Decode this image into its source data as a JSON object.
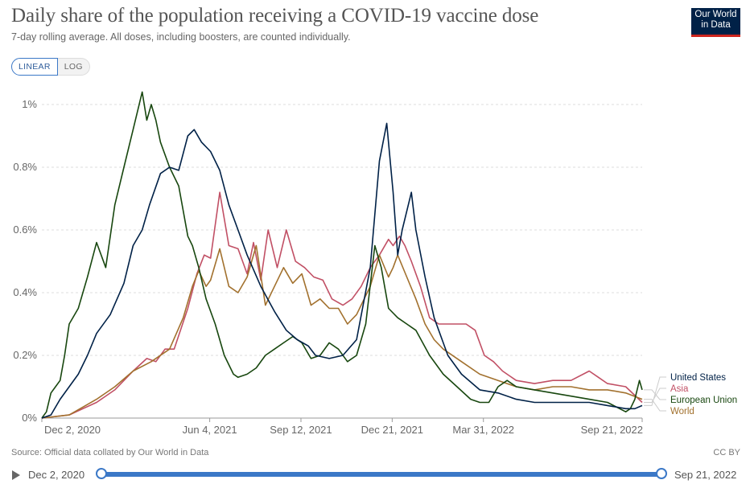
{
  "header": {
    "title": "Daily share of the population receiving a COVID-19 vaccine dose",
    "subtitle": "7-day rolling average. All doses, including boosters, are counted individually.",
    "logo_line1": "Our World",
    "logo_line2": "in Data"
  },
  "controls": {
    "linear_label": "LINEAR",
    "log_label": "LOG",
    "active_scale": "linear"
  },
  "footer": {
    "source": "Source: Official data collated by Our World in Data",
    "license": "CC BY"
  },
  "timeline": {
    "start_label": "Dec 2, 2020",
    "end_label": "Sep 21, 2022",
    "start_value": "2020-12-02",
    "end_value": "2022-09-21"
  },
  "colors": {
    "United States": "#002147",
    "Asia": "#c15065",
    "European Union": "#18470f",
    "World": "#a2712e",
    "logo_bg": "#002147",
    "logo_accent": "#ce261e",
    "accent": "#3b78c7"
  },
  "chart_data": {
    "type": "line",
    "title": "Daily share of the population receiving a COVID-19 vaccine dose",
    "xlabel": "",
    "ylabel": "",
    "x_unit": "days since Dec 2, 2020",
    "xlim": [
      0,
      658
    ],
    "ylim": [
      0,
      1.0
    ],
    "yticks": [
      0,
      0.2,
      0.4,
      0.6,
      0.8,
      1.0
    ],
    "ytick_labels": [
      "0%",
      "0.2%",
      "0.4%",
      "0.6%",
      "0.8%",
      "1%"
    ],
    "x_ticks": [
      {
        "x": 0,
        "label": "Dec 2, 2020"
      },
      {
        "x": 184,
        "label": "Jun 4, 2021"
      },
      {
        "x": 284,
        "label": "Sep 12, 2021"
      },
      {
        "x": 384,
        "label": "Dec 21, 2021"
      },
      {
        "x": 484,
        "label": "Mar 31, 2022"
      },
      {
        "x": 658,
        "label": "Sep 21, 2022"
      }
    ],
    "grid": true,
    "legend": "inline-right",
    "series": [
      {
        "name": "United States",
        "x": [
          0,
          10,
          20,
          30,
          40,
          50,
          60,
          75,
          90,
          100,
          110,
          118,
          130,
          140,
          150,
          160,
          167,
          175,
          185,
          195,
          205,
          215,
          225,
          240,
          255,
          268,
          280,
          292,
          300,
          315,
          330,
          345,
          360,
          370,
          378,
          385,
          390,
          395,
          405,
          410,
          420,
          430,
          445,
          460,
          480,
          500,
          520,
          540,
          560,
          580,
          600,
          620,
          640,
          650,
          658
        ],
        "y": [
          0,
          0.01,
          0.06,
          0.1,
          0.14,
          0.2,
          0.27,
          0.33,
          0.43,
          0.55,
          0.6,
          0.68,
          0.78,
          0.8,
          0.79,
          0.9,
          0.92,
          0.88,
          0.85,
          0.79,
          0.68,
          0.6,
          0.52,
          0.42,
          0.34,
          0.28,
          0.25,
          0.23,
          0.2,
          0.19,
          0.2,
          0.25,
          0.48,
          0.82,
          0.94,
          0.72,
          0.52,
          0.6,
          0.72,
          0.6,
          0.45,
          0.32,
          0.2,
          0.14,
          0.09,
          0.08,
          0.06,
          0.05,
          0.05,
          0.05,
          0.05,
          0.04,
          0.03,
          0.03,
          0.04
        ]
      },
      {
        "name": "Asia",
        "x": [
          0,
          30,
          60,
          80,
          100,
          115,
          125,
          135,
          145,
          160,
          170,
          178,
          185,
          195,
          205,
          215,
          225,
          232,
          240,
          248,
          258,
          268,
          278,
          288,
          298,
          308,
          318,
          330,
          340,
          350,
          360,
          370,
          380,
          385,
          392,
          398,
          405,
          415,
          425,
          435,
          450,
          465,
          475,
          485,
          495,
          505,
          520,
          540,
          560,
          580,
          600,
          610,
          620,
          640,
          658
        ],
        "y": [
          0,
          0.01,
          0.05,
          0.09,
          0.15,
          0.19,
          0.18,
          0.22,
          0.22,
          0.35,
          0.46,
          0.52,
          0.51,
          0.72,
          0.55,
          0.54,
          0.46,
          0.56,
          0.44,
          0.6,
          0.48,
          0.6,
          0.5,
          0.48,
          0.45,
          0.44,
          0.38,
          0.36,
          0.38,
          0.42,
          0.48,
          0.52,
          0.57,
          0.55,
          0.58,
          0.55,
          0.5,
          0.42,
          0.32,
          0.3,
          0.3,
          0.3,
          0.28,
          0.2,
          0.18,
          0.15,
          0.12,
          0.11,
          0.12,
          0.12,
          0.15,
          0.13,
          0.11,
          0.1,
          0.05
        ]
      },
      {
        "name": "European Union",
        "x": [
          0,
          5,
          10,
          15,
          20,
          25,
          30,
          40,
          50,
          60,
          70,
          80,
          90,
          100,
          110,
          115,
          120,
          125,
          130,
          140,
          150,
          160,
          165,
          172,
          180,
          190,
          200,
          210,
          215,
          225,
          235,
          245,
          255,
          265,
          275,
          285,
          295,
          305,
          315,
          325,
          335,
          345,
          355,
          365,
          372,
          380,
          390,
          400,
          410,
          425,
          440,
          455,
          470,
          480,
          490,
          500,
          510,
          520,
          540,
          560,
          580,
          600,
          620,
          640,
          645,
          650,
          655,
          658
        ],
        "y": [
          0,
          0.02,
          0.08,
          0.1,
          0.12,
          0.2,
          0.3,
          0.35,
          0.45,
          0.56,
          0.48,
          0.68,
          0.8,
          0.92,
          1.04,
          0.95,
          1.0,
          0.95,
          0.88,
          0.8,
          0.74,
          0.58,
          0.55,
          0.48,
          0.38,
          0.3,
          0.2,
          0.14,
          0.13,
          0.14,
          0.16,
          0.2,
          0.22,
          0.24,
          0.26,
          0.24,
          0.19,
          0.2,
          0.24,
          0.22,
          0.18,
          0.2,
          0.3,
          0.55,
          0.48,
          0.35,
          0.32,
          0.3,
          0.28,
          0.2,
          0.14,
          0.1,
          0.06,
          0.05,
          0.05,
          0.1,
          0.12,
          0.1,
          0.09,
          0.08,
          0.07,
          0.06,
          0.05,
          0.02,
          0.03,
          0.06,
          0.12,
          0.09
        ]
      },
      {
        "name": "World",
        "x": [
          0,
          30,
          60,
          80,
          100,
          120,
          140,
          155,
          165,
          172,
          180,
          185,
          195,
          205,
          215,
          225,
          235,
          245,
          255,
          265,
          275,
          285,
          295,
          305,
          315,
          325,
          335,
          345,
          360,
          370,
          380,
          385,
          390,
          400,
          410,
          420,
          430,
          440,
          460,
          480,
          500,
          520,
          540,
          560,
          580,
          600,
          620,
          640,
          658
        ],
        "y": [
          0,
          0.01,
          0.06,
          0.1,
          0.15,
          0.18,
          0.22,
          0.32,
          0.42,
          0.47,
          0.42,
          0.44,
          0.54,
          0.42,
          0.4,
          0.45,
          0.55,
          0.36,
          0.42,
          0.48,
          0.43,
          0.46,
          0.36,
          0.38,
          0.35,
          0.35,
          0.3,
          0.33,
          0.42,
          0.52,
          0.45,
          0.48,
          0.52,
          0.45,
          0.38,
          0.3,
          0.25,
          0.22,
          0.18,
          0.14,
          0.12,
          0.1,
          0.09,
          0.1,
          0.1,
          0.09,
          0.09,
          0.08,
          0.06
        ]
      }
    ],
    "legend_entries": [
      "United States",
      "Asia",
      "European Union",
      "World"
    ]
  }
}
